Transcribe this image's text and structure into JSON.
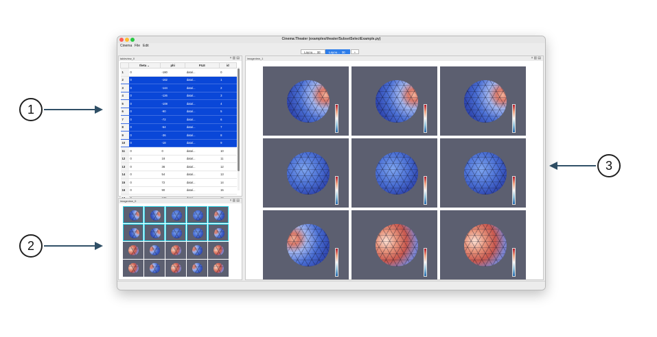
{
  "window": {
    "title": "Cinema:Theater (examples/theater/SubsetSelectExample.py)"
  },
  "menu": [
    "Cinema",
    "File",
    "Edit"
  ],
  "tabs": [
    {
      "label": "Layou...",
      "close": "⌧",
      "active": false
    },
    {
      "label": "Layou...",
      "close": "⌧",
      "active": true
    },
    {
      "label": "+",
      "active": false
    }
  ],
  "table_panel": {
    "title": "tableview_0",
    "columns": [
      "theta",
      "phi",
      "FILE",
      "id"
    ],
    "rows": [
      {
        "n": "1",
        "theta": "0",
        "phi": "-180",
        "file": "data/...",
        "id": "0",
        "selected": false
      },
      {
        "n": "2",
        "theta": "0",
        "phi": "-162",
        "file": "data/...",
        "id": "1",
        "selected": true
      },
      {
        "n": "3",
        "theta": "0",
        "phi": "-144",
        "file": "data/...",
        "id": "2",
        "selected": true
      },
      {
        "n": "4",
        "theta": "0",
        "phi": "-126",
        "file": "data/...",
        "id": "3",
        "selected": true
      },
      {
        "n": "5",
        "theta": "0",
        "phi": "-108",
        "file": "data/...",
        "id": "4",
        "selected": true
      },
      {
        "n": "6",
        "theta": "0",
        "phi": "-90",
        "file": "data/...",
        "id": "5",
        "selected": true
      },
      {
        "n": "7",
        "theta": "0",
        "phi": "-72",
        "file": "data/...",
        "id": "6",
        "selected": true
      },
      {
        "n": "8",
        "theta": "0",
        "phi": "-54",
        "file": "data/...",
        "id": "7",
        "selected": true
      },
      {
        "n": "9",
        "theta": "0",
        "phi": "-36",
        "file": "data/...",
        "id": "8",
        "selected": true
      },
      {
        "n": "10",
        "theta": "0",
        "phi": "-18",
        "file": "data/...",
        "id": "9",
        "selected": true
      },
      {
        "n": "11",
        "theta": "0",
        "phi": "0",
        "file": "data/...",
        "id": "10",
        "selected": false
      },
      {
        "n": "12",
        "theta": "0",
        "phi": "18",
        "file": "data/...",
        "id": "11",
        "selected": false
      },
      {
        "n": "13",
        "theta": "0",
        "phi": "36",
        "file": "data/...",
        "id": "12",
        "selected": false
      },
      {
        "n": "14",
        "theta": "0",
        "phi": "54",
        "file": "data/...",
        "id": "13",
        "selected": false
      },
      {
        "n": "15",
        "theta": "0",
        "phi": "72",
        "file": "data/...",
        "id": "14",
        "selected": false
      },
      {
        "n": "16",
        "theta": "0",
        "phi": "90",
        "file": "data/...",
        "id": "15",
        "selected": false
      },
      {
        "n": "17",
        "theta": "0",
        "phi": "108",
        "file": "data/...",
        "id": "16",
        "selected": false
      }
    ]
  },
  "image_panel_small": {
    "title": "imageview_0",
    "grid_rows": 4,
    "grid_cols": 5,
    "selected_cells": [
      0,
      1,
      2,
      3,
      4,
      5,
      6,
      7,
      8,
      9
    ]
  },
  "image_panel_large": {
    "title": "imageview_1",
    "tiles": [
      {
        "tint": "cool-right-warm"
      },
      {
        "tint": "cool-right-warm"
      },
      {
        "tint": "cool-right-warm"
      },
      {
        "tint": "cool"
      },
      {
        "tint": "cool"
      },
      {
        "tint": "cool"
      },
      {
        "tint": "cool-left-warm"
      },
      {
        "tint": "warm"
      },
      {
        "tint": "warm"
      }
    ]
  },
  "callouts": [
    "1",
    "2",
    "3"
  ],
  "colors": {
    "selection": "#0a47d8",
    "tile_bg": "#5c5f70",
    "selected_tile_border": "#26d3e8",
    "arrow": "#2f4f66"
  }
}
